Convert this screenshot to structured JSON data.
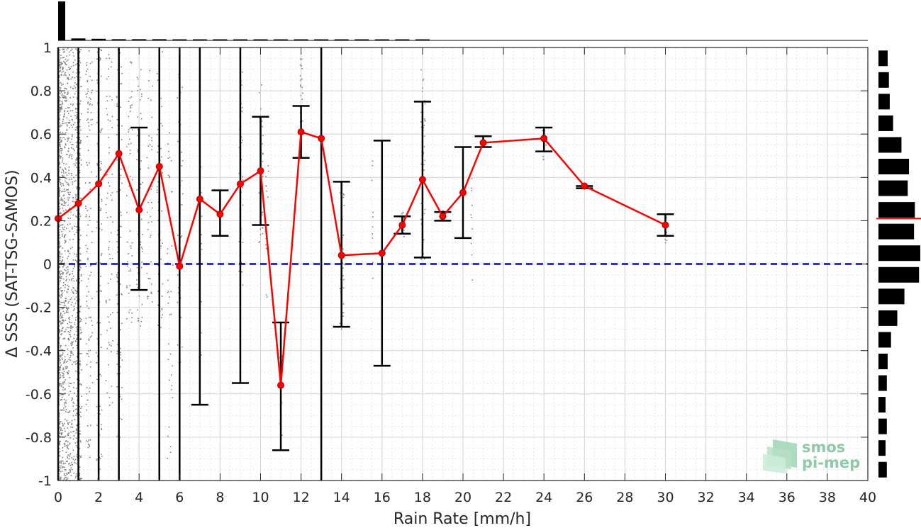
{
  "chart_data": {
    "type": "line",
    "xlabel": "Rain Rate [mm/h]",
    "ylabel": "Δ SSS (SAT-TSG-SAMOS)",
    "xlim": [
      0,
      40
    ],
    "ylim": [
      -1,
      1
    ],
    "x_ticks": [
      0,
      2,
      4,
      6,
      8,
      10,
      12,
      14,
      16,
      18,
      20,
      22,
      24,
      26,
      28,
      30,
      32,
      34,
      36,
      38,
      40
    ],
    "y_ticks": [
      -1,
      -0.8,
      -0.6,
      -0.4,
      -0.2,
      0,
      0.2,
      0.4,
      0.6,
      0.8,
      1
    ],
    "x_tick_labels": [
      "0",
      "2",
      "4",
      "6",
      "8",
      "10",
      "12",
      "14",
      "16",
      "18",
      "20",
      "22",
      "24",
      "26",
      "28",
      "30",
      "32",
      "34",
      "36",
      "38",
      "40"
    ],
    "y_tick_labels": [
      "-1",
      "-0.8",
      "-0.6",
      "-0.4",
      "-0.2",
      "0",
      "0.2",
      "0.4",
      "0.6",
      "0.8",
      "1"
    ],
    "grid": true,
    "mean_series": {
      "color": "#ff0000",
      "x": [
        0,
        1,
        2,
        3,
        4,
        5,
        6,
        7,
        8,
        9,
        10,
        11,
        12,
        13,
        14,
        16,
        17,
        18,
        19,
        20,
        21,
        24,
        26,
        30
      ],
      "y": [
        0.21,
        0.28,
        0.37,
        0.51,
        0.25,
        0.45,
        -0.01,
        0.3,
        0.23,
        0.37,
        0.43,
        -0.56,
        0.61,
        0.58,
        0.04,
        0.05,
        0.18,
        0.39,
        0.22,
        0.33,
        0.56,
        0.58,
        0.36,
        0.18
      ]
    },
    "error_bars": [
      {
        "x": 0,
        "low": -1,
        "high": 1
      },
      {
        "x": 1,
        "low": -1,
        "high": 1
      },
      {
        "x": 2,
        "low": -1,
        "high": 1
      },
      {
        "x": 3,
        "low": -1,
        "high": 1
      },
      {
        "x": 4,
        "low": -0.12,
        "high": 0.63
      },
      {
        "x": 5,
        "low": -1,
        "high": 1
      },
      {
        "x": 6,
        "low": -1,
        "high": 1
      },
      {
        "x": 7,
        "low": -0.65,
        "high": 1
      },
      {
        "x": 8,
        "low": 0.13,
        "high": 0.34
      },
      {
        "x": 9,
        "low": -0.55,
        "high": 1
      },
      {
        "x": 10,
        "low": 0.18,
        "high": 0.68
      },
      {
        "x": 11,
        "low": -0.86,
        "high": -0.27
      },
      {
        "x": 12,
        "low": 0.49,
        "high": 0.73
      },
      {
        "x": 13,
        "low": -1,
        "high": 1
      },
      {
        "x": 14,
        "low": -0.29,
        "high": 0.38
      },
      {
        "x": 16,
        "low": -0.47,
        "high": 0.57
      },
      {
        "x": 17,
        "low": 0.14,
        "high": 0.22
      },
      {
        "x": 18,
        "low": 0.03,
        "high": 0.75
      },
      {
        "x": 19,
        "low": 0.2,
        "high": 0.24
      },
      {
        "x": 20,
        "low": 0.12,
        "high": 0.54
      },
      {
        "x": 21,
        "low": 0.54,
        "high": 0.59
      },
      {
        "x": 24,
        "low": 0.52,
        "high": 0.63
      },
      {
        "x": 26,
        "low": 0.35,
        "high": 0.36
      },
      {
        "x": 30,
        "low": 0.13,
        "high": 0.23
      }
    ],
    "zero_reference_line": {
      "y": 0,
      "color": "#0000dd",
      "style": "dashed"
    },
    "scatter_color": "#808080",
    "top_histogram": {
      "x": [
        0,
        1,
        2,
        3,
        4,
        5,
        6,
        7,
        8,
        9,
        10,
        11,
        12,
        13,
        14,
        15,
        16,
        17,
        18
      ],
      "relative_height": [
        1.0,
        0.05,
        0.04,
        0.03,
        0.03,
        0.03,
        0.02,
        0.02,
        0.02,
        0.02,
        0.02,
        0.02,
        0.02,
        0.02,
        0.02,
        0.01,
        0.02,
        0.01,
        0.02
      ]
    },
    "right_histogram": {
      "y": [
        0.95,
        0.85,
        0.75,
        0.65,
        0.55,
        0.45,
        0.35,
        0.25,
        0.15,
        0.05,
        -0.05,
        -0.15,
        -0.25,
        -0.35,
        -0.45,
        -0.55,
        -0.65,
        -0.75,
        -0.85,
        -0.95
      ],
      "relative_width": [
        0.22,
        0.25,
        0.27,
        0.35,
        0.55,
        0.73,
        0.7,
        0.87,
        0.85,
        1.0,
        0.97,
        0.62,
        0.45,
        0.3,
        0.22,
        0.2,
        0.17,
        0.2,
        0.17,
        0.2
      ],
      "mean_marker": {
        "y": 0.21,
        "color": "#ff0000"
      }
    }
  },
  "logo": {
    "line1": "smos",
    "line2": "pi-mep",
    "color": "#8fc9a9"
  }
}
